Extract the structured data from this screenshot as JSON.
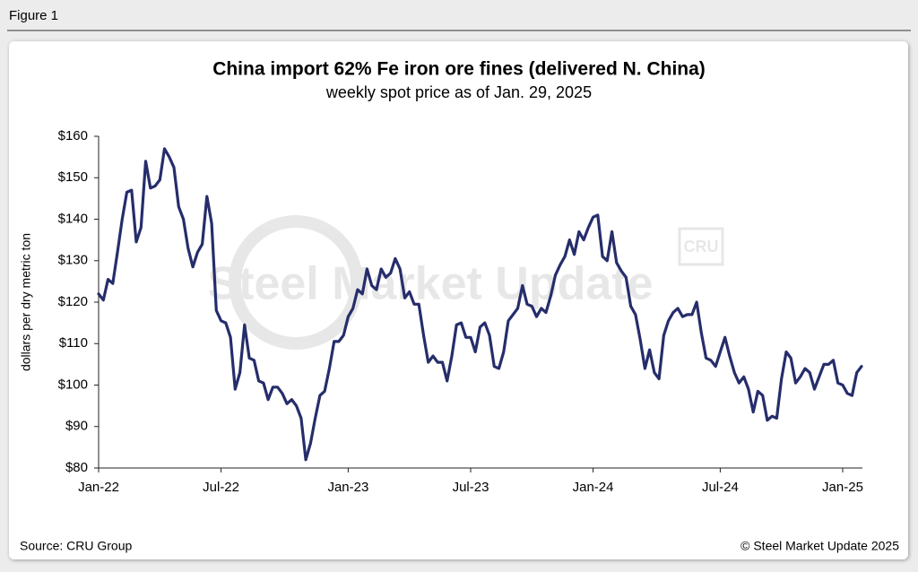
{
  "figure_label": "Figure 1",
  "source": "Source: CRU Group",
  "copyright": "© Steel Market Update 2025",
  "watermark": "Steel Market Update",
  "watermark_logo": "CRU",
  "chart_data": {
    "type": "line",
    "title": "China import 62% Fe iron ore fines (delivered N. China)",
    "subtitle": "weekly spot price as of Jan. 29, 2025",
    "y_label": "dollars per dry metric ton",
    "color": "#262d6b",
    "ylim": [
      80,
      160
    ],
    "yticks": [
      {
        "value": 80,
        "label": "$80"
      },
      {
        "value": 90,
        "label": "$90"
      },
      {
        "value": 100,
        "label": "$100"
      },
      {
        "value": 110,
        "label": "$110"
      },
      {
        "value": 120,
        "label": "$120"
      },
      {
        "value": 130,
        "label": "$130"
      },
      {
        "value": 140,
        "label": "$140"
      },
      {
        "value": 150,
        "label": "$150"
      },
      {
        "value": 160,
        "label": "$160"
      }
    ],
    "categories": [
      "Jan-22",
      null,
      null,
      null,
      null,
      null,
      null,
      null,
      null,
      null,
      null,
      null,
      null,
      null,
      null,
      null,
      null,
      null,
      null,
      null,
      null,
      null,
      null,
      null,
      null,
      null,
      "Jul-22",
      null,
      null,
      null,
      null,
      null,
      null,
      null,
      null,
      null,
      null,
      null,
      null,
      null,
      null,
      null,
      null,
      null,
      null,
      null,
      null,
      null,
      null,
      null,
      null,
      null,
      null,
      "Jan-23",
      null,
      null,
      null,
      null,
      null,
      null,
      null,
      null,
      null,
      null,
      null,
      null,
      null,
      null,
      null,
      null,
      null,
      null,
      null,
      null,
      null,
      null,
      null,
      null,
      null,
      "Jul-23",
      null,
      null,
      null,
      null,
      null,
      null,
      null,
      null,
      null,
      null,
      null,
      null,
      null,
      null,
      null,
      null,
      null,
      null,
      null,
      null,
      null,
      null,
      null,
      null,
      null,
      "Jan-24",
      null,
      null,
      null,
      null,
      null,
      null,
      null,
      null,
      null,
      null,
      null,
      null,
      null,
      null,
      null,
      null,
      null,
      null,
      null,
      null,
      null,
      null,
      null,
      null,
      null,
      null,
      "Jul-24",
      null,
      null,
      null,
      null,
      null,
      null,
      null,
      null,
      null,
      null,
      null,
      null,
      null,
      null,
      null,
      null,
      null,
      null,
      null,
      null,
      null,
      null,
      null,
      null,
      null,
      "Jan-25",
      null,
      null,
      null,
      null
    ],
    "values": [
      122,
      120.5,
      125.5,
      124.5,
      132,
      140,
      146.5,
      147,
      134.5,
      138,
      154,
      147.5,
      148,
      149.5,
      157,
      155,
      152.5,
      143,
      140,
      133,
      128.5,
      132,
      134,
      145.5,
      139,
      118,
      115.5,
      115,
      111.5,
      99,
      103,
      114.5,
      106.5,
      106,
      101,
      100.5,
      96.5,
      99.5,
      99.5,
      98,
      95.5,
      96.5,
      95,
      92,
      82,
      86,
      92,
      97.5,
      98.5,
      104,
      110.5,
      110.5,
      112,
      116.5,
      118.5,
      123,
      122,
      128,
      124,
      123,
      128,
      126,
      127,
      130.5,
      128,
      121,
      122.5,
      119.5,
      119.5,
      112,
      105.5,
      107,
      105.5,
      105.5,
      101,
      107,
      114.5,
      115,
      111.5,
      111.5,
      108,
      114,
      115,
      112,
      104.5,
      104,
      108,
      115.5,
      117,
      118.5,
      124,
      119.5,
      119,
      116.5,
      118.5,
      117.5,
      121.5,
      126.5,
      129,
      131,
      135,
      131.5,
      137,
      135,
      138,
      140.5,
      141,
      131,
      130,
      137,
      129.5,
      127.5,
      126,
      119,
      117,
      111,
      104,
      108.5,
      103,
      101.5,
      112,
      115.5,
      117.5,
      118.5,
      116.5,
      117,
      117,
      120,
      112.5,
      106.5,
      106,
      104.5,
      108,
      111.5,
      107,
      103,
      100.5,
      102,
      99,
      93.5,
      98.5,
      97.5,
      91.5,
      92.5,
      92,
      101.5,
      108,
      106.5,
      100.5,
      102,
      104,
      103,
      99,
      102,
      105,
      105,
      106,
      100.5,
      100,
      98,
      97.5,
      103,
      104.5
    ]
  }
}
